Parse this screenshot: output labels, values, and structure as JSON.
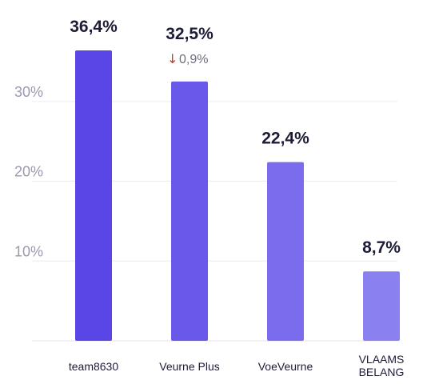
{
  "chart_data": {
    "type": "bar",
    "categories": [
      "team8630",
      "Veurne Plus",
      "VoeVeurne",
      "VLAAMS BELANG"
    ],
    "values": [
      36.4,
      32.5,
      22.4,
      8.7
    ],
    "value_labels": [
      "36,4%",
      "32,5%",
      "22,4%",
      "8,7%"
    ],
    "changes": [
      null,
      {
        "direction": "down",
        "arrow": "↓",
        "label": "0,9%",
        "arrow_color": "#c0392b"
      },
      null,
      null
    ],
    "bar_colors": [
      "#5a46e6",
      "#6a58ea",
      "#7b6ced",
      "#8b80ef"
    ],
    "y_ticks": [
      10,
      20,
      30
    ],
    "y_tick_labels": [
      "10%",
      "20%",
      "30%"
    ],
    "ylim": [
      0,
      36.4
    ],
    "grid": true,
    "title": "",
    "xlabel": "",
    "ylabel": ""
  }
}
